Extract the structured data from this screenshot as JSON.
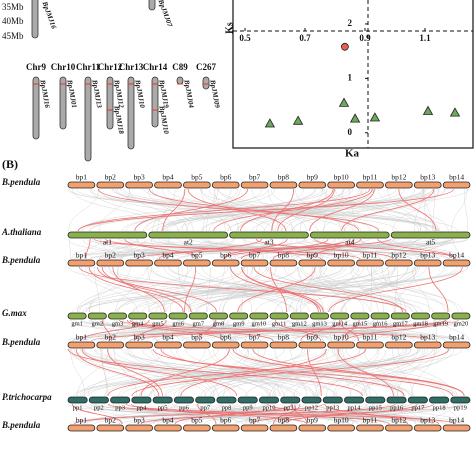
{
  "panel_a": {
    "scale": [
      "35Mb",
      "40Mb",
      "45Mb"
    ],
    "top_genes": [
      "BpJMJ16",
      "BpJMJ07"
    ],
    "chromosomes": [
      {
        "name": "Chr9",
        "genes": [
          "BpJMJ16"
        ]
      },
      {
        "name": "Chr10",
        "genes": [
          "BpJMJ01"
        ]
      },
      {
        "name": "Chr11",
        "genes": [
          "BpJMJ13"
        ]
      },
      {
        "name": "Chr12",
        "genes": [
          "BpJMJ12",
          "BpJMJ18"
        ]
      },
      {
        "name": "Chr13",
        "genes": [
          "BpJMJ10"
        ]
      },
      {
        "name": "Chr14",
        "genes": [
          "BpJMJ19",
          "BpJMJ10"
        ]
      },
      {
        "name": "C89",
        "genes": [
          "BpJMJ04"
        ]
      },
      {
        "name": "C267",
        "genes": [
          "BpJMJ09"
        ]
      }
    ]
  },
  "chart_data": {
    "type": "scatter",
    "x_label": "Ka",
    "y_label": "Ks",
    "xlim": [
      0.46,
      1.26
    ],
    "ylim": [
      -0.28,
      2.44
    ],
    "xticks": [
      0.5,
      0.7,
      0.9,
      1.1
    ],
    "yticks": [
      0,
      1,
      2
    ],
    "series": [
      {
        "marker": "circle",
        "color": "#e8604c",
        "x": [
          0.833
        ],
        "values": [
          1.58
        ]
      },
      {
        "marker": "triangle",
        "color": "#6aaa5a",
        "x": [
          0.583,
          0.677,
          0.83,
          0.867,
          0.933,
          1.11,
          1.2
        ],
        "values": [
          0.17,
          0.22,
          0.55,
          0.26,
          0.28,
          0.4,
          0.37
        ]
      }
    ]
  },
  "panel_b": {
    "label": "(B)",
    "rows": [
      {
        "species": "B.pendula",
        "chromosomes": [
          "bp1",
          "bp2",
          "bp3",
          "bp4",
          "bp5",
          "bp6",
          "bp7",
          "bp8",
          "bp9",
          "bp10",
          "bp11",
          "bp12",
          "bp13",
          "bp14"
        ]
      },
      {
        "species": "A.thaliana",
        "chromosomes": [
          "at1",
          "at2",
          "at3",
          "at4",
          "at5"
        ]
      },
      {
        "species": "B.pendula",
        "chromosomes": [
          "bp1",
          "bp2",
          "bp3",
          "bp4",
          "bp5",
          "bp6",
          "bp7",
          "bp8",
          "bp9",
          "bp10",
          "bp11",
          "bp12",
          "bp13",
          "bp14"
        ]
      },
      {
        "species": "G.max",
        "chromosomes": [
          "gm1",
          "gm2",
          "gm3",
          "gm4",
          "gm5",
          "gm6",
          "gm7",
          "gm8",
          "gm9",
          "gm10",
          "gm11",
          "gm12",
          "gm13",
          "gm14",
          "gm15",
          "gm16",
          "gm17",
          "gm18",
          "gm19",
          "gm20"
        ]
      },
      {
        "species": "B.pendula",
        "chromosomes": [
          "bp1",
          "bp2",
          "bp3",
          "bp4",
          "bp5",
          "bp6",
          "bp7",
          "bp8",
          "bp9",
          "bp10",
          "bp11",
          "bp12",
          "bp13",
          "bp14"
        ]
      },
      {
        "species": "P.trichocarpa",
        "chromosomes": [
          "pp1",
          "pp2",
          "pp3",
          "pp4",
          "pp5",
          "pp6",
          "pp7",
          "pp8",
          "pp9",
          "pp10",
          "pp11",
          "pp12",
          "pp13",
          "pp14",
          "pp15",
          "pp16",
          "pp17",
          "pp18",
          "pp19"
        ]
      },
      {
        "species": "B.pendula",
        "chromosomes": [
          "bp1",
          "bp2",
          "bp3",
          "bp4",
          "bp5",
          "bp6",
          "bp7",
          "bp8",
          "bp9",
          "bp10",
          "bp11",
          "bp12",
          "bp13",
          "bp14"
        ]
      }
    ]
  }
}
